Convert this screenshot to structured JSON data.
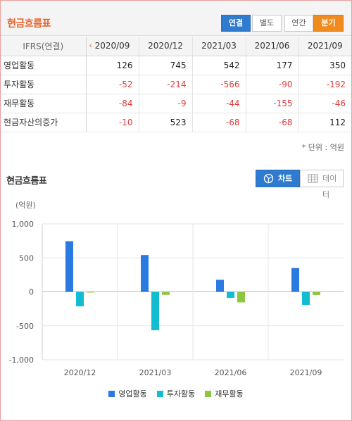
{
  "header": {
    "title": "현금흐름표",
    "consolidated_label": "연결",
    "separate_label": "별도",
    "annual_label": "연간",
    "quarterly_label": "분기"
  },
  "table": {
    "corner_label": "IFRS(연결)",
    "columns": [
      "2020/09",
      "2020/12",
      "2021/03",
      "2021/06",
      "2021/09"
    ],
    "rows": [
      {
        "label": "영업활동",
        "values": [
          "126",
          "745",
          "542",
          "177",
          "350"
        ]
      },
      {
        "label": "투자활동",
        "values": [
          "-52",
          "-214",
          "-566",
          "-90",
          "-192"
        ]
      },
      {
        "label": "재무활동",
        "values": [
          "-84",
          "-9",
          "-44",
          "-155",
          "-46"
        ]
      },
      {
        "label": "현금자산의증가",
        "values": [
          "-10",
          "523",
          "-68",
          "-68",
          "112"
        ]
      }
    ],
    "unit_note": "* 단위 : 억원"
  },
  "chart_section": {
    "title": "현금흐름표",
    "chart_button": "차트",
    "data_button": "데이터",
    "y_unit": "(억원)"
  },
  "colors": {
    "accent_orange": "#e8632c",
    "button_blue": "#2f7bd0",
    "negative_red": "#e23b3b"
  },
  "icons": {
    "chart_button_icon": "chart-icon",
    "data_button_icon": "table-icon",
    "prev_icon": "chevron-left-icon"
  },
  "chart_data": {
    "type": "bar",
    "categories": [
      "2020/12",
      "2021/03",
      "2021/06",
      "2021/09"
    ],
    "series": [
      {
        "name": "영업활동",
        "color": "#2a7ae2",
        "values": [
          745,
          542,
          177,
          350
        ]
      },
      {
        "name": "투자활동",
        "color": "#12bdd0",
        "values": [
          -214,
          -566,
          -90,
          -192
        ]
      },
      {
        "name": "재무활동",
        "color": "#8dc63f",
        "values": [
          -9,
          -44,
          -155,
          -46
        ]
      }
    ],
    "yticks": [
      "1,000",
      "500",
      "0",
      "-500",
      "-1,000"
    ],
    "ylim": [
      -1000,
      1000
    ],
    "ytick_values": [
      1000,
      500,
      0,
      -500,
      -1000
    ],
    "grid": true,
    "legend_position": "bottom"
  }
}
